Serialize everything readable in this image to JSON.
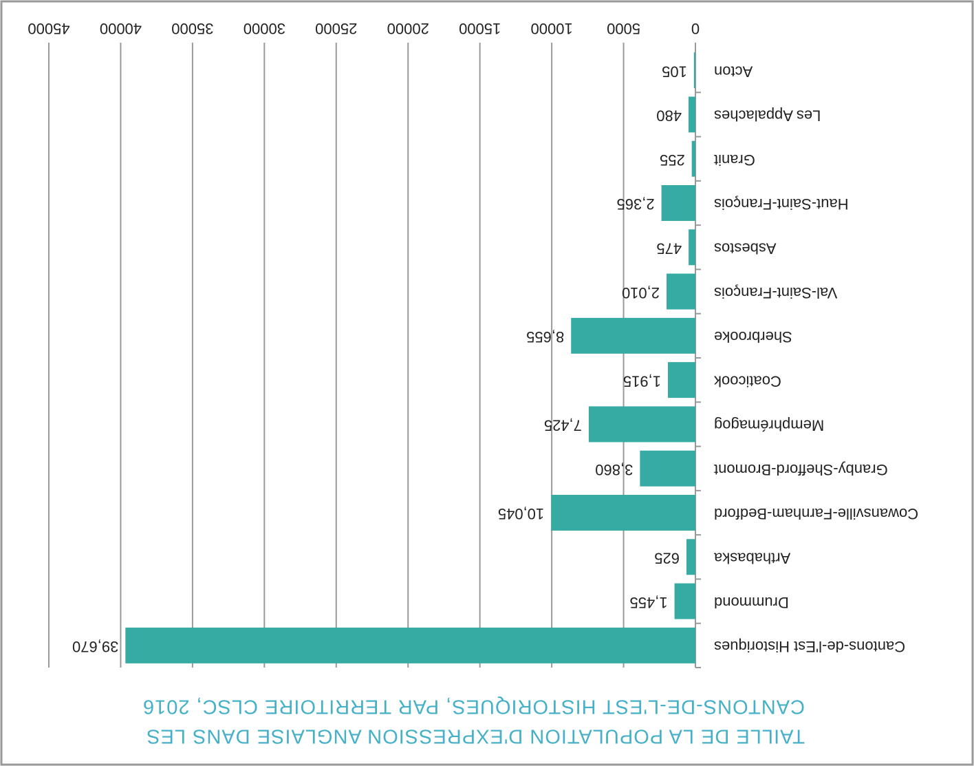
{
  "chart_data": {
    "type": "bar",
    "orientation": "horizontal",
    "title": [
      "TAILLE DE LA POPULATION D'EXPRESSION ANGLAISE DANS LES",
      "CANTONS-DE-L'EST HISTORIQUES, PAR TERRITOIRE CLSC, 2016"
    ],
    "categories": [
      "Cantons-de-l'Est Historiques",
      "Drummond",
      "Arthabaska",
      "Cowansville-Farnham-Bedford",
      "Granby-Shefford-Bromont",
      "Memphrémagog",
      "Coaticook",
      "Sherbrooke",
      "Val-Saint-François",
      "Asbestos",
      "Haut-Saint-François",
      "Granit",
      "Les Appalaches",
      "Acton"
    ],
    "values": [
      39670,
      1455,
      625,
      10045,
      3860,
      7425,
      1915,
      8655,
      2010,
      475,
      2365,
      255,
      480,
      105
    ],
    "value_labels": [
      "39,670",
      "1,455",
      "625",
      "10,045",
      "3,860",
      "7,425",
      "1,915",
      "8,655",
      "2,010",
      "475",
      "2,365",
      "255",
      "480",
      "105"
    ],
    "color": "#36aba4",
    "xlim": [
      0,
      45000
    ],
    "xticks": [
      0,
      5000,
      10000,
      15000,
      20000,
      25000,
      30000,
      35000,
      40000,
      45000
    ],
    "grid": true
  }
}
